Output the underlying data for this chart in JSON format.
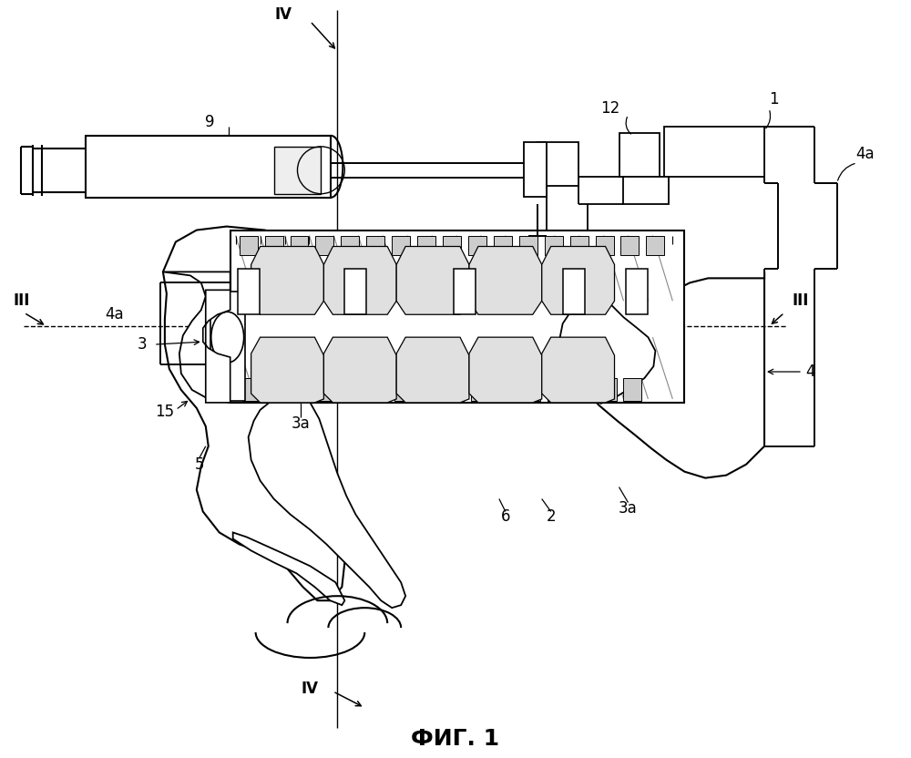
{
  "title": "ФИГ. 1",
  "title_fontsize": 18,
  "background_color": "#ffffff",
  "line_color": "#000000",
  "labels": {
    "IV_top": "IV",
    "9": "9",
    "12": "12",
    "1": "1",
    "4a_top_right": "4a",
    "III_left": "III",
    "III_right": "III",
    "3": "3",
    "3a_mid": "3a",
    "15": "15",
    "5": "5",
    "4a_left": "4a",
    "4": "4",
    "6": "6",
    "2": "2",
    "3a_bot": "3a",
    "IV_bot": "IV"
  },
  "fig_width": 10.0,
  "fig_height": 8.32
}
